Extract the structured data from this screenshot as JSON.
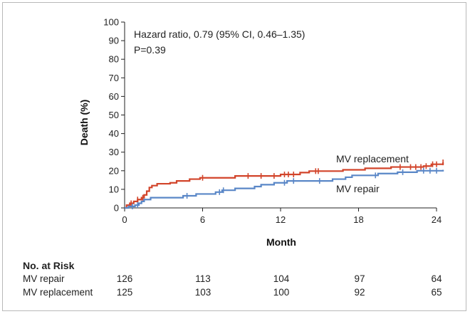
{
  "chart_data": {
    "type": "line",
    "ylabel": "Death (%)",
    "xlabel": "Month",
    "ylim": [
      0,
      100
    ],
    "xlim": [
      0,
      24
    ],
    "yticks": [
      0,
      10,
      20,
      30,
      40,
      50,
      60,
      70,
      80,
      90,
      100
    ],
    "xticks": [
      0,
      6,
      12,
      18,
      24
    ],
    "annotation": {
      "line1": "Hazard ratio, 0.79 (95% CI, 0.46–1.35)",
      "line2": "P=0.39"
    },
    "series": [
      {
        "name": "MV replacement",
        "color": "#d2442a",
        "steps": [
          [
            0,
            0
          ],
          [
            0.15,
            1.5
          ],
          [
            0.4,
            2.5
          ],
          [
            0.7,
            3.5
          ],
          [
            1.0,
            4.5
          ],
          [
            1.3,
            5.5
          ],
          [
            1.5,
            7
          ],
          [
            1.7,
            9
          ],
          [
            1.9,
            11
          ],
          [
            2.1,
            12
          ],
          [
            2.5,
            13
          ],
          [
            3.5,
            13.5
          ],
          [
            4.0,
            14.5
          ],
          [
            5.0,
            15.5
          ],
          [
            5.8,
            16.2
          ],
          [
            8.5,
            17.2
          ],
          [
            12.0,
            18
          ],
          [
            13.5,
            19
          ],
          [
            14.2,
            19.8
          ],
          [
            16.8,
            20.5
          ],
          [
            18.5,
            21.3
          ],
          [
            20.5,
            22
          ],
          [
            23.0,
            22.5
          ],
          [
            23.6,
            23.5
          ],
          [
            24.5,
            24.5
          ]
        ],
        "censor": [
          0.5,
          1.0,
          1.4,
          6.0,
          9.5,
          10.5,
          11.5,
          12.3,
          12.6,
          13.0,
          14.7,
          14.9,
          21.2,
          22.0,
          22.4,
          22.8,
          23.2,
          23.7,
          24.0,
          24.5
        ],
        "end_label": "MV replacement"
      },
      {
        "name": "MV repair",
        "color": "#5a87c7",
        "steps": [
          [
            0,
            0
          ],
          [
            0.3,
            0.8
          ],
          [
            0.8,
            1.5
          ],
          [
            1.1,
            2.5
          ],
          [
            1.3,
            3.5
          ],
          [
            1.5,
            4.5
          ],
          [
            2.0,
            5.5
          ],
          [
            4.5,
            6.5
          ],
          [
            5.5,
            7.5
          ],
          [
            7.0,
            8.5
          ],
          [
            7.5,
            9.5
          ],
          [
            8.5,
            10.5
          ],
          [
            10.0,
            11.5
          ],
          [
            10.5,
            12.5
          ],
          [
            11.5,
            13.5
          ],
          [
            12.5,
            14.5
          ],
          [
            16.0,
            15.5
          ],
          [
            17.0,
            16.5
          ],
          [
            17.5,
            17.5
          ],
          [
            19.5,
            18.5
          ],
          [
            21.0,
            19.2
          ],
          [
            22.5,
            20
          ],
          [
            24.5,
            20.5
          ]
        ],
        "censor": [
          0.6,
          1.0,
          4.8,
          7.3,
          7.6,
          12.3,
          13.0,
          15.0,
          19.3,
          21.4,
          23.0,
          23.5,
          24.0
        ],
        "end_label": "MV repair"
      }
    ],
    "at_risk": {
      "title": "No. at Risk",
      "rows": [
        {
          "label": "MV repair",
          "values": [
            "126",
            "113",
            "104",
            "97",
            "64"
          ]
        },
        {
          "label": "MV replacement",
          "values": [
            "125",
            "103",
            "100",
            "92",
            "65"
          ]
        }
      ]
    }
  }
}
